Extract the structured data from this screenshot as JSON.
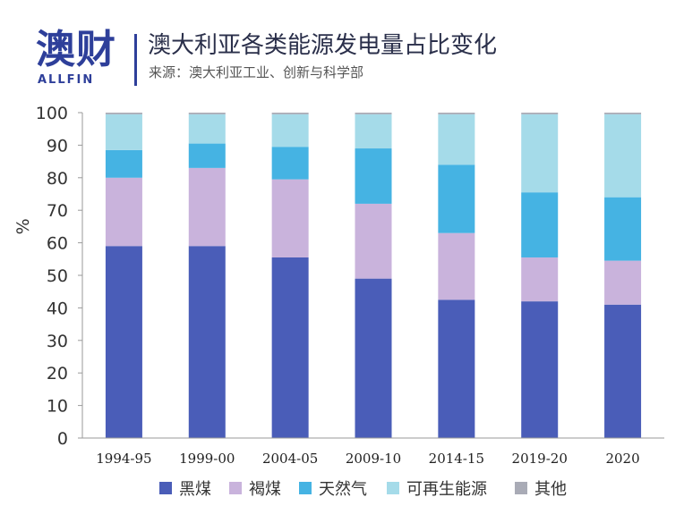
{
  "header": {
    "logo_cn": "澳财",
    "logo_en": "ALLFIN",
    "title": "澳大利亚各类能源发电量占比变化",
    "source": "来源：澳大利亚工业、创新与科学部"
  },
  "colors": {
    "黑煤": "#4a5db8",
    "褐煤": "#c9b3dc",
    "天然气": "#45b3e3",
    "可再生能源": "#a5dbe9",
    "其他": "#a9abb6"
  },
  "chart_data": {
    "type": "bar",
    "stacked": true,
    "categories": [
      "1994-95",
      "1999-00",
      "2004-05",
      "2009-10",
      "2014-15",
      "2019-20",
      "2020"
    ],
    "ylabel": "%",
    "xlabel": "",
    "ylim": [
      0,
      100
    ],
    "yticks": [
      0,
      10,
      20,
      30,
      40,
      50,
      60,
      70,
      80,
      90,
      100
    ],
    "grid": false,
    "legend_position": "bottom",
    "series": [
      {
        "name": "黑煤",
        "values": [
          59,
          59,
          55.5,
          49,
          42.5,
          42,
          41
        ]
      },
      {
        "name": "褐煤",
        "values": [
          21,
          24,
          24,
          23,
          20.5,
          13.5,
          13.5
        ]
      },
      {
        "name": "天然气",
        "values": [
          8.5,
          7.5,
          10,
          17,
          21,
          20,
          19.5
        ]
      },
      {
        "name": "可再生能源",
        "values": [
          11,
          9,
          10,
          10.5,
          15.5,
          24,
          25.5
        ]
      },
      {
        "name": "其他",
        "values": [
          0.5,
          0.5,
          0.5,
          0.5,
          0.5,
          0.5,
          0.5
        ]
      }
    ]
  }
}
